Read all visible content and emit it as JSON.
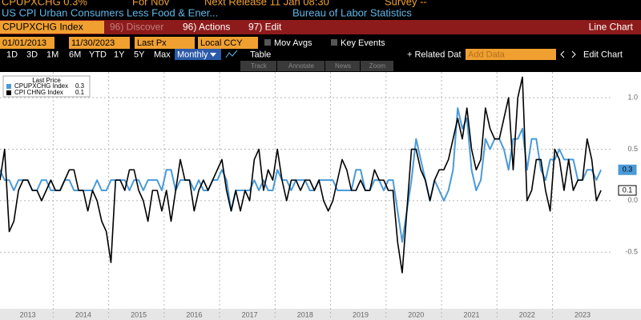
{
  "header": {
    "ticker": "CPUPXCHG 0.3%",
    "period": "For Nov",
    "next_release": "Next Release 11 Jan 08:30",
    "survey": "Survey --",
    "description": "US CPI Urban Consumers Less Food & Ener...",
    "source": "Bureau of Labor Statistics"
  },
  "menu": {
    "security": "CPUPXCHG Index",
    "discover": "96) Discover",
    "actions": "96) Actions",
    "edit": "97) Edit",
    "chart_type": "Line Chart"
  },
  "controls": {
    "start_date": "01/01/2013",
    "end_date": "11/30/2023",
    "field": "Last Px",
    "currency": "Local CCY",
    "mov_avgs": "Mov Avgs",
    "key_events": "Key Events"
  },
  "ranges": [
    "1D",
    "3D",
    "1M",
    "6M",
    "YTD",
    "1Y",
    "5Y",
    "Max"
  ],
  "period_select": "Monthly",
  "table": "Table",
  "related": "+ Related Dat",
  "add_data": "Add Data",
  "edit_chart": "Edit Chart",
  "tools": [
    "Track",
    "Annotate",
    "News",
    "Zoom"
  ],
  "chart_data": {
    "type": "line",
    "legend_title": "Last Price",
    "categories": [
      null,
      null,
      null,
      null,
      null,
      null,
      "2013",
      null,
      null,
      null,
      null,
      null,
      null,
      null,
      null,
      null,
      null,
      null,
      "2014",
      null,
      null,
      null,
      null,
      null,
      null,
      null,
      null,
      null,
      null,
      null,
      "2015",
      null,
      null,
      null,
      null,
      null,
      null,
      null,
      null,
      null,
      null,
      null,
      "2016",
      null,
      null,
      null,
      null,
      null,
      null,
      null,
      null,
      null,
      null,
      null,
      "2017",
      null,
      null,
      null,
      null,
      null,
      null,
      null,
      null,
      null,
      null,
      null,
      "2018",
      null,
      null,
      null,
      null,
      null,
      null,
      null,
      null,
      null,
      null,
      null,
      "2019",
      null,
      null,
      null,
      null,
      null,
      null,
      null,
      null,
      null,
      null,
      null,
      "2020",
      null,
      null,
      null,
      null,
      null,
      null,
      null,
      null,
      null,
      null,
      null,
      "2021",
      null,
      null,
      null,
      null,
      null,
      null,
      null,
      null,
      null,
      null,
      null,
      "2022",
      null,
      null,
      null,
      null,
      null,
      null,
      null,
      null,
      null,
      null,
      null,
      "2023",
      null,
      null,
      null,
      null
    ],
    "series": [
      {
        "name": "CPUPXCHG Index",
        "color": "#4a9ad8",
        "values": [
          0.3,
          0.2,
          0.2,
          0.1,
          0.2,
          0.2,
          0.2,
          0.1,
          0.1,
          0.2,
          0.2,
          0.1,
          0.1,
          0.1,
          0.2,
          0.2,
          0.1,
          0.1,
          0.1,
          0.1,
          0.1,
          0.2,
          0.1,
          0.1,
          0.2,
          0.2,
          0.2,
          0.2,
          0.1,
          0.2,
          0.2,
          0.1,
          0.2,
          0.2,
          0.2,
          0.1,
          0.3,
          0.3,
          0.1,
          0.2,
          0.2,
          0.2,
          0.1,
          0.2,
          0.1,
          0.1,
          0.2,
          0.2,
          0.3,
          0.2,
          -0.1,
          0.1,
          0.1,
          0.1,
          0.1,
          0.2,
          0.1,
          0.2,
          0.1,
          0.1,
          0.3,
          0.2,
          0.2,
          0.1,
          0.2,
          0.2,
          0.2,
          0.1,
          0.1,
          0.2,
          0.2,
          0.2,
          0.2,
          0.1,
          0.1,
          0.1,
          0.1,
          0.3,
          0.3,
          0.1,
          0.1,
          0.2,
          0.2,
          0.1,
          0.2,
          0.2,
          -0.1,
          -0.4,
          -0.1,
          0.2,
          0.6,
          0.4,
          0.2,
          0.0,
          0.2,
          0.1,
          0.0,
          0.1,
          0.3,
          0.9,
          0.7,
          0.8,
          0.3,
          0.1,
          0.2,
          0.6,
          0.5,
          0.6,
          0.6,
          0.5,
          0.3,
          0.6,
          0.6,
          0.7,
          0.3,
          0.6,
          0.6,
          0.3,
          0.2,
          0.4,
          0.4,
          0.5,
          0.4,
          0.4,
          0.4,
          0.2,
          0.2,
          0.3,
          0.3,
          0.2,
          0.3
        ]
      },
      {
        "name": "CPI CHNG Index",
        "color": "#000000",
        "values": [
          0.2,
          0.5,
          -0.3,
          -0.2,
          0.1,
          0.2,
          0.2,
          0.1,
          0.1,
          0.0,
          0.1,
          0.2,
          0.1,
          0.1,
          0.2,
          0.3,
          0.3,
          0.1,
          0.1,
          -0.1,
          0.1,
          0.0,
          -0.2,
          -0.3,
          -0.6,
          0.2,
          0.2,
          0.1,
          0.3,
          0.3,
          0.1,
          0.0,
          -0.2,
          0.1,
          0.1,
          -0.1,
          0.1,
          -0.2,
          0.1,
          0.4,
          0.2,
          0.2,
          -0.1,
          0.1,
          0.2,
          0.1,
          0.2,
          0.3,
          0.4,
          0.1,
          -0.1,
          0.1,
          -0.1,
          0.1,
          0.0,
          0.4,
          0.5,
          0.1,
          0.3,
          0.2,
          0.5,
          0.2,
          0.0,
          0.2,
          0.2,
          0.1,
          0.2,
          0.2,
          0.1,
          0.2,
          0.0,
          -0.1,
          0.0,
          0.2,
          0.4,
          0.3,
          0.1,
          0.1,
          0.2,
          0.1,
          0.1,
          0.3,
          0.2,
          0.2,
          0.1,
          0.1,
          -0.4,
          -0.7,
          -0.1,
          0.5,
          0.5,
          0.3,
          0.2,
          0.0,
          0.2,
          0.3,
          0.3,
          0.4,
          0.6,
          0.8,
          0.6,
          0.9,
          0.5,
          0.3,
          0.4,
          0.9,
          0.7,
          0.6,
          0.6,
          0.8,
          1.0,
          0.3,
          1.0,
          1.2,
          0.0,
          0.1,
          0.4,
          0.4,
          0.1,
          -0.1,
          0.5,
          0.4,
          0.1,
          0.4,
          0.1,
          0.2,
          0.2,
          0.6,
          0.4,
          0.0,
          0.1
        ]
      }
    ],
    "ylim": [
      -1.05,
      1.25
    ],
    "yticks": [
      {
        "value": 1,
        "label": "1.0"
      },
      0.5,
      {
        "value": 0,
        "label": "0.0"
      },
      -0.5
    ],
    "grid": true
  }
}
